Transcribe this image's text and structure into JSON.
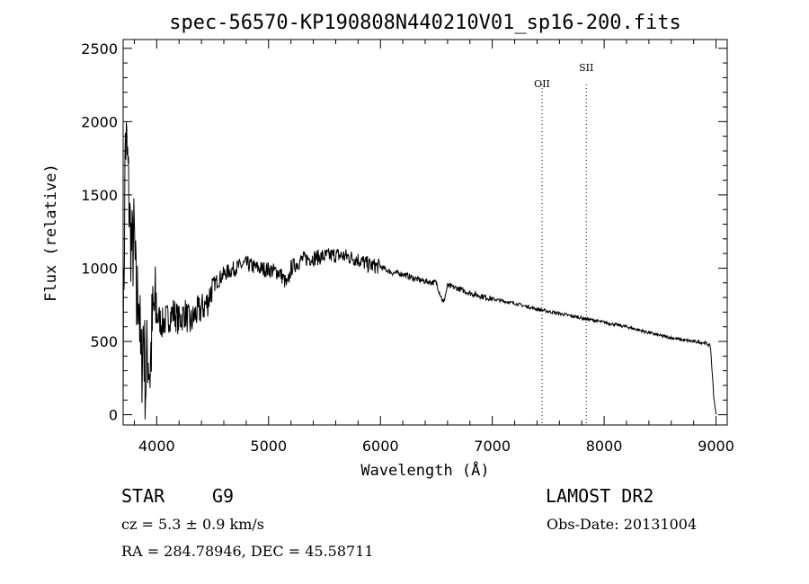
{
  "chart_data": {
    "type": "line",
    "title": "spec-56570-KP190808N440210V01_sp16-200.fits",
    "xlabel": "Wavelength (Å)",
    "ylabel": "Flux (relative)",
    "xlim": [
      3700,
      9100
    ],
    "ylim": [
      -70,
      2560
    ],
    "x_ticks": [
      4000,
      5000,
      6000,
      7000,
      8000,
      9000
    ],
    "y_ticks": [
      0,
      500,
      1000,
      1500,
      2000,
      2500
    ],
    "grid": false,
    "series": [
      {
        "x": [
          3700,
          3720,
          3740,
          3760,
          3780,
          3800,
          3820,
          3840,
          3860,
          3880,
          3900,
          3920,
          3940,
          3960,
          3980,
          4000,
          4050,
          4100,
          4150,
          4200,
          4250,
          4300,
          4350,
          4400,
          4450,
          4500,
          4550,
          4600,
          4650,
          4700,
          4800,
          4900,
          5000,
          5100,
          5170,
          5200,
          5300,
          5400,
          5500,
          5600,
          5700,
          5800,
          5900,
          6000,
          6100,
          6200,
          6300,
          6400,
          6500,
          6563,
          6600,
          6700,
          6800,
          6900,
          7000,
          7200,
          7400,
          7600,
          7800,
          8000,
          8200,
          8400,
          8500,
          8600,
          8700,
          8800,
          8900,
          8950,
          8980,
          9000
        ],
        "y": [
          400,
          1900,
          1700,
          1300,
          1100,
          1200,
          700,
          900,
          250,
          600,
          200,
          450,
          300,
          600,
          720,
          680,
          620,
          660,
          700,
          640,
          700,
          620,
          690,
          720,
          760,
          880,
          920,
          960,
          980,
          1000,
          1030,
          1000,
          990,
          970,
          880,
          1000,
          1060,
          1070,
          1080,
          1090,
          1080,
          1060,
          1020,
          1010,
          970,
          960,
          930,
          910,
          900,
          760,
          880,
          860,
          830,
          810,
          790,
          760,
          720,
          690,
          660,
          630,
          600,
          560,
          540,
          525,
          510,
          500,
          490,
          470,
          120,
          0
        ]
      }
    ],
    "lines": [
      {
        "label": "OII",
        "x": 7445
      },
      {
        "label": "SII",
        "x": 7840
      }
    ]
  },
  "info": {
    "object_class": "STAR",
    "subclass": "G9",
    "survey": "LAMOST DR2",
    "cz": "cz = 5.3 ± 0.9 km/s",
    "obs_date": "Obs-Date: 20131004",
    "radec": "RA = 284.78946, DEC =  45.58711"
  }
}
